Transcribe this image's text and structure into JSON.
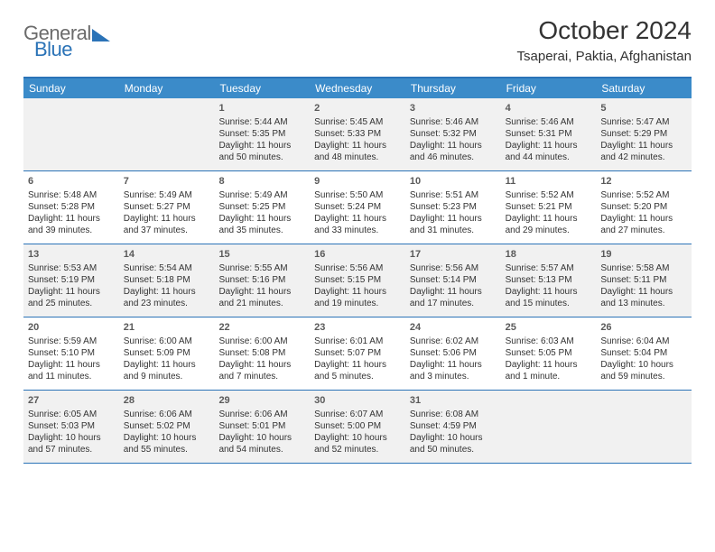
{
  "logo": {
    "part1": "General",
    "part2": "Blue"
  },
  "title": "October 2024",
  "location": "Tsaperai, Paktia, Afghanistan",
  "colors": {
    "brand": "#2b73b7",
    "header_bg": "#3b8bc9",
    "shade": "#eeeeee",
    "text": "#333333",
    "logo_gray": "#6b6b6b"
  },
  "daysOfWeek": [
    "Sunday",
    "Monday",
    "Tuesday",
    "Wednesday",
    "Thursday",
    "Friday",
    "Saturday"
  ],
  "weeks": [
    {
      "shaded": true,
      "cells": [
        {
          "day": "",
          "sunrise": "",
          "sunset": "",
          "daylight1": "",
          "daylight2": ""
        },
        {
          "day": "",
          "sunrise": "",
          "sunset": "",
          "daylight1": "",
          "daylight2": ""
        },
        {
          "day": "1",
          "sunrise": "Sunrise: 5:44 AM",
          "sunset": "Sunset: 5:35 PM",
          "daylight1": "Daylight: 11 hours",
          "daylight2": "and 50 minutes."
        },
        {
          "day": "2",
          "sunrise": "Sunrise: 5:45 AM",
          "sunset": "Sunset: 5:33 PM",
          "daylight1": "Daylight: 11 hours",
          "daylight2": "and 48 minutes."
        },
        {
          "day": "3",
          "sunrise": "Sunrise: 5:46 AM",
          "sunset": "Sunset: 5:32 PM",
          "daylight1": "Daylight: 11 hours",
          "daylight2": "and 46 minutes."
        },
        {
          "day": "4",
          "sunrise": "Sunrise: 5:46 AM",
          "sunset": "Sunset: 5:31 PM",
          "daylight1": "Daylight: 11 hours",
          "daylight2": "and 44 minutes."
        },
        {
          "day": "5",
          "sunrise": "Sunrise: 5:47 AM",
          "sunset": "Sunset: 5:29 PM",
          "daylight1": "Daylight: 11 hours",
          "daylight2": "and 42 minutes."
        }
      ]
    },
    {
      "shaded": false,
      "cells": [
        {
          "day": "6",
          "sunrise": "Sunrise: 5:48 AM",
          "sunset": "Sunset: 5:28 PM",
          "daylight1": "Daylight: 11 hours",
          "daylight2": "and 39 minutes."
        },
        {
          "day": "7",
          "sunrise": "Sunrise: 5:49 AM",
          "sunset": "Sunset: 5:27 PM",
          "daylight1": "Daylight: 11 hours",
          "daylight2": "and 37 minutes."
        },
        {
          "day": "8",
          "sunrise": "Sunrise: 5:49 AM",
          "sunset": "Sunset: 5:25 PM",
          "daylight1": "Daylight: 11 hours",
          "daylight2": "and 35 minutes."
        },
        {
          "day": "9",
          "sunrise": "Sunrise: 5:50 AM",
          "sunset": "Sunset: 5:24 PM",
          "daylight1": "Daylight: 11 hours",
          "daylight2": "and 33 minutes."
        },
        {
          "day": "10",
          "sunrise": "Sunrise: 5:51 AM",
          "sunset": "Sunset: 5:23 PM",
          "daylight1": "Daylight: 11 hours",
          "daylight2": "and 31 minutes."
        },
        {
          "day": "11",
          "sunrise": "Sunrise: 5:52 AM",
          "sunset": "Sunset: 5:21 PM",
          "daylight1": "Daylight: 11 hours",
          "daylight2": "and 29 minutes."
        },
        {
          "day": "12",
          "sunrise": "Sunrise: 5:52 AM",
          "sunset": "Sunset: 5:20 PM",
          "daylight1": "Daylight: 11 hours",
          "daylight2": "and 27 minutes."
        }
      ]
    },
    {
      "shaded": true,
      "cells": [
        {
          "day": "13",
          "sunrise": "Sunrise: 5:53 AM",
          "sunset": "Sunset: 5:19 PM",
          "daylight1": "Daylight: 11 hours",
          "daylight2": "and 25 minutes."
        },
        {
          "day": "14",
          "sunrise": "Sunrise: 5:54 AM",
          "sunset": "Sunset: 5:18 PM",
          "daylight1": "Daylight: 11 hours",
          "daylight2": "and 23 minutes."
        },
        {
          "day": "15",
          "sunrise": "Sunrise: 5:55 AM",
          "sunset": "Sunset: 5:16 PM",
          "daylight1": "Daylight: 11 hours",
          "daylight2": "and 21 minutes."
        },
        {
          "day": "16",
          "sunrise": "Sunrise: 5:56 AM",
          "sunset": "Sunset: 5:15 PM",
          "daylight1": "Daylight: 11 hours",
          "daylight2": "and 19 minutes."
        },
        {
          "day": "17",
          "sunrise": "Sunrise: 5:56 AM",
          "sunset": "Sunset: 5:14 PM",
          "daylight1": "Daylight: 11 hours",
          "daylight2": "and 17 minutes."
        },
        {
          "day": "18",
          "sunrise": "Sunrise: 5:57 AM",
          "sunset": "Sunset: 5:13 PM",
          "daylight1": "Daylight: 11 hours",
          "daylight2": "and 15 minutes."
        },
        {
          "day": "19",
          "sunrise": "Sunrise: 5:58 AM",
          "sunset": "Sunset: 5:11 PM",
          "daylight1": "Daylight: 11 hours",
          "daylight2": "and 13 minutes."
        }
      ]
    },
    {
      "shaded": false,
      "cells": [
        {
          "day": "20",
          "sunrise": "Sunrise: 5:59 AM",
          "sunset": "Sunset: 5:10 PM",
          "daylight1": "Daylight: 11 hours",
          "daylight2": "and 11 minutes."
        },
        {
          "day": "21",
          "sunrise": "Sunrise: 6:00 AM",
          "sunset": "Sunset: 5:09 PM",
          "daylight1": "Daylight: 11 hours",
          "daylight2": "and 9 minutes."
        },
        {
          "day": "22",
          "sunrise": "Sunrise: 6:00 AM",
          "sunset": "Sunset: 5:08 PM",
          "daylight1": "Daylight: 11 hours",
          "daylight2": "and 7 minutes."
        },
        {
          "day": "23",
          "sunrise": "Sunrise: 6:01 AM",
          "sunset": "Sunset: 5:07 PM",
          "daylight1": "Daylight: 11 hours",
          "daylight2": "and 5 minutes."
        },
        {
          "day": "24",
          "sunrise": "Sunrise: 6:02 AM",
          "sunset": "Sunset: 5:06 PM",
          "daylight1": "Daylight: 11 hours",
          "daylight2": "and 3 minutes."
        },
        {
          "day": "25",
          "sunrise": "Sunrise: 6:03 AM",
          "sunset": "Sunset: 5:05 PM",
          "daylight1": "Daylight: 11 hours",
          "daylight2": "and 1 minute."
        },
        {
          "day": "26",
          "sunrise": "Sunrise: 6:04 AM",
          "sunset": "Sunset: 5:04 PM",
          "daylight1": "Daylight: 10 hours",
          "daylight2": "and 59 minutes."
        }
      ]
    },
    {
      "shaded": true,
      "cells": [
        {
          "day": "27",
          "sunrise": "Sunrise: 6:05 AM",
          "sunset": "Sunset: 5:03 PM",
          "daylight1": "Daylight: 10 hours",
          "daylight2": "and 57 minutes."
        },
        {
          "day": "28",
          "sunrise": "Sunrise: 6:06 AM",
          "sunset": "Sunset: 5:02 PM",
          "daylight1": "Daylight: 10 hours",
          "daylight2": "and 55 minutes."
        },
        {
          "day": "29",
          "sunrise": "Sunrise: 6:06 AM",
          "sunset": "Sunset: 5:01 PM",
          "daylight1": "Daylight: 10 hours",
          "daylight2": "and 54 minutes."
        },
        {
          "day": "30",
          "sunrise": "Sunrise: 6:07 AM",
          "sunset": "Sunset: 5:00 PM",
          "daylight1": "Daylight: 10 hours",
          "daylight2": "and 52 minutes."
        },
        {
          "day": "31",
          "sunrise": "Sunrise: 6:08 AM",
          "sunset": "Sunset: 4:59 PM",
          "daylight1": "Daylight: 10 hours",
          "daylight2": "and 50 minutes."
        },
        {
          "day": "",
          "sunrise": "",
          "sunset": "",
          "daylight1": "",
          "daylight2": ""
        },
        {
          "day": "",
          "sunrise": "",
          "sunset": "",
          "daylight1": "",
          "daylight2": ""
        }
      ]
    }
  ]
}
